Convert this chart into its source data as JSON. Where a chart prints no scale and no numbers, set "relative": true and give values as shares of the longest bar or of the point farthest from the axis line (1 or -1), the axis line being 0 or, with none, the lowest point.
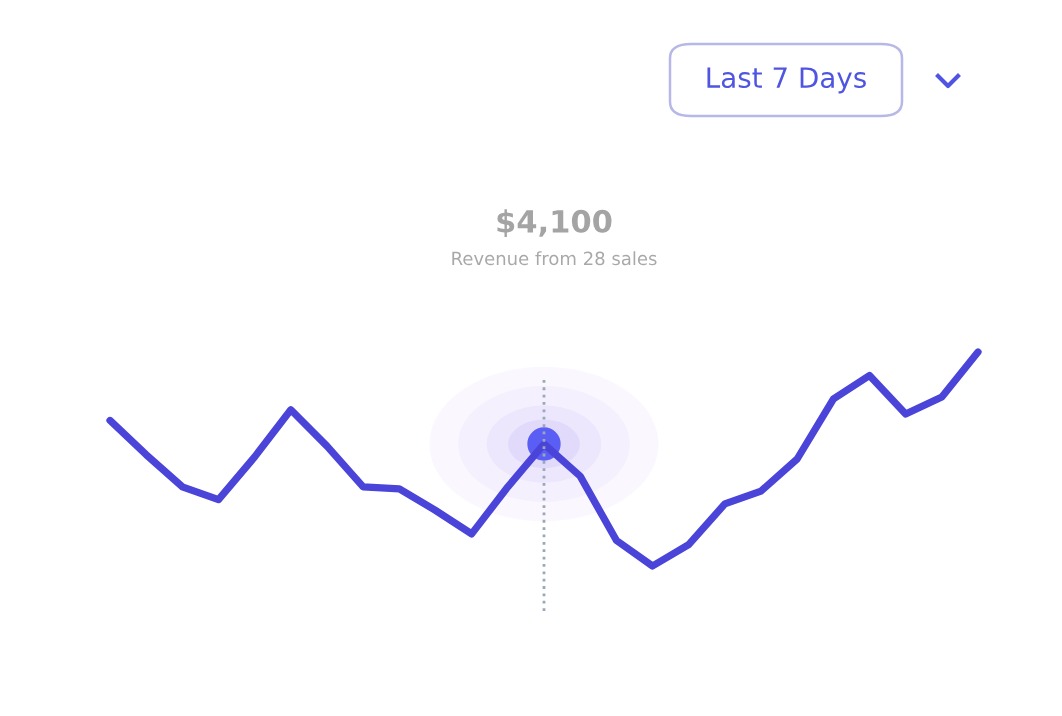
{
  "chart_data": {
    "type": "line",
    "relative": true,
    "categories": [
      null,
      null,
      null,
      null,
      null,
      null,
      null,
      null,
      null,
      null,
      null,
      null,
      null,
      null,
      null,
      null,
      null,
      null,
      null,
      null,
      null,
      null,
      null,
      null,
      null
    ],
    "series": [
      {
        "color": "#4a44d8",
        "values": [
          0.68,
          0.52,
          0.37,
          0.31,
          0.51,
          0.73,
          0.56,
          0.37,
          0.36,
          0.26,
          0.15,
          0.37,
          0.57,
          0.42,
          0.12,
          0,
          0.1,
          0.29,
          0.35,
          0.5,
          0.78,
          0.89,
          0.71,
          0.79,
          1
        ]
      }
    ],
    "annotations": [
      "$4,100",
      "Revenue from 28 sales",
      "Last 7 Days"
    ],
    "line_style": "solid"
  }
}
